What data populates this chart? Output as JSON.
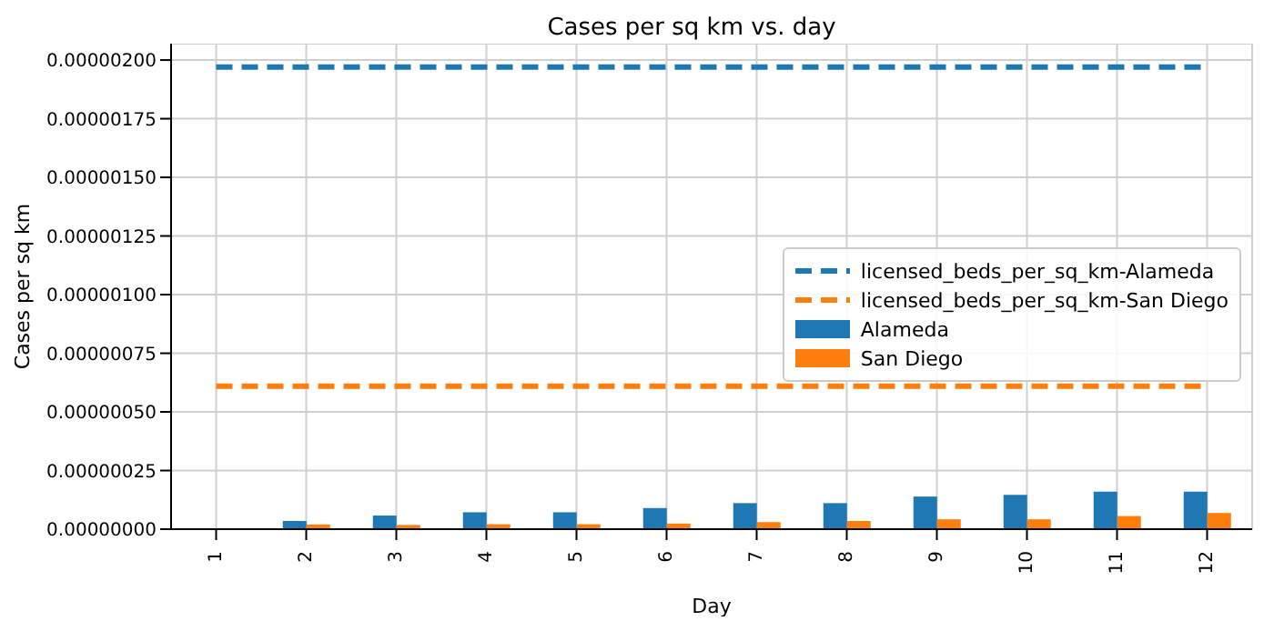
{
  "chart_data": {
    "type": "bar",
    "title": "Cases per sq km vs. day",
    "xlabel": "Day",
    "ylabel": "Cases per sq km",
    "categories": [
      "1",
      "2",
      "3",
      "4",
      "5",
      "6",
      "7",
      "8",
      "9",
      "10",
      "11",
      "12"
    ],
    "series": [
      {
        "name": "licensed_beds_per_sq_km-Alameda",
        "type": "line",
        "line_style": "dashed",
        "color": "#1f77b4",
        "values": [
          1.97e-06,
          1.97e-06,
          1.97e-06,
          1.97e-06,
          1.97e-06,
          1.97e-06,
          1.97e-06,
          1.97e-06,
          1.97e-06,
          1.97e-06,
          1.97e-06,
          1.97e-06
        ]
      },
      {
        "name": "licensed_beds_per_sq_km-San Diego",
        "type": "line",
        "line_style": "dashed",
        "color": "#ff7f0e",
        "values": [
          6.1e-07,
          6.1e-07,
          6.1e-07,
          6.1e-07,
          6.1e-07,
          6.1e-07,
          6.1e-07,
          6.1e-07,
          6.1e-07,
          6.1e-07,
          6.1e-07,
          6.1e-07
        ]
      },
      {
        "name": "Alameda",
        "color": "#1f77b4",
        "values": [
          0,
          3.5e-08,
          5.8e-08,
          7.2e-08,
          7.2e-08,
          9e-08,
          1.11e-07,
          1.11e-07,
          1.39e-07,
          1.46e-07,
          1.6e-07,
          1.6e-07
        ]
      },
      {
        "name": "San Diego",
        "color": "#ff7f0e",
        "values": [
          0,
          2e-08,
          1.8e-08,
          2.1e-08,
          2.1e-08,
          2.4e-08,
          3e-08,
          3.5e-08,
          4.2e-08,
          4.2e-08,
          5.6e-08,
          6.9e-08
        ]
      }
    ],
    "ylim": [
      0,
      2.07e-06
    ],
    "yticks": [
      {
        "value": 0,
        "label": "0.00000000"
      },
      {
        "value": 2.5e-07,
        "label": "0.00000025"
      },
      {
        "value": 5e-07,
        "label": "0.00000050"
      },
      {
        "value": 7.5e-07,
        "label": "0.00000075"
      },
      {
        "value": 1e-06,
        "label": "0.00000100"
      },
      {
        "value": 1.25e-06,
        "label": "0.00000125"
      },
      {
        "value": 1.5e-06,
        "label": "0.00000150"
      },
      {
        "value": 1.75e-06,
        "label": "0.00000175"
      },
      {
        "value": 2e-06,
        "label": "0.00000200"
      }
    ],
    "grid": true,
    "legend": "right"
  }
}
